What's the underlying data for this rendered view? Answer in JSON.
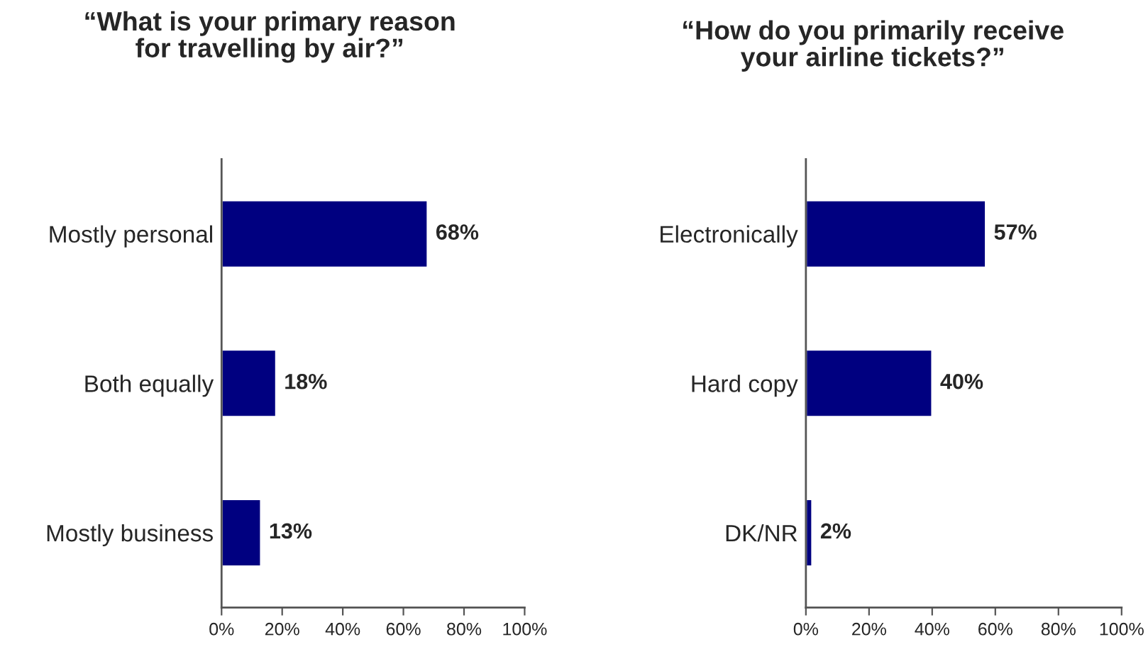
{
  "chart_data": [
    {
      "type": "bar",
      "orientation": "horizontal",
      "title": "“What is your primary reason\nfor travelling by air?”",
      "categories": [
        "Mostly personal",
        "Both equally",
        "Mostly business"
      ],
      "values": [
        68,
        18,
        13
      ],
      "value_labels": [
        "68%",
        "18%",
        "13%"
      ],
      "color": "#000080",
      "xlim": [
        0,
        100
      ],
      "xticks": [
        {
          "value": 0,
          "label": "0%"
        },
        {
          "value": 20,
          "label": "20%"
        },
        {
          "value": 40,
          "label": "40%"
        },
        {
          "value": 60,
          "label": "60%"
        },
        {
          "value": 80,
          "label": "80%"
        },
        {
          "value": 100,
          "label": "100%"
        }
      ],
      "grid": false,
      "legend": false
    },
    {
      "type": "bar",
      "orientation": "horizontal",
      "title": "“How do you primarily receive\nyour airline tickets?”",
      "categories": [
        "Electronically",
        "Hard copy",
        "DK/NR"
      ],
      "values": [
        57,
        40,
        2
      ],
      "value_labels": [
        "57%",
        "40%",
        "2%"
      ],
      "color": "#000080",
      "xlim": [
        0,
        100
      ],
      "xticks": [
        {
          "value": 0,
          "label": "0%"
        },
        {
          "value": 20,
          "label": "20%"
        },
        {
          "value": 40,
          "label": "40%"
        },
        {
          "value": 60,
          "label": "60%"
        },
        {
          "value": 80,
          "label": "80%"
        },
        {
          "value": 100,
          "label": "100%"
        }
      ],
      "grid": false,
      "legend": false
    }
  ]
}
